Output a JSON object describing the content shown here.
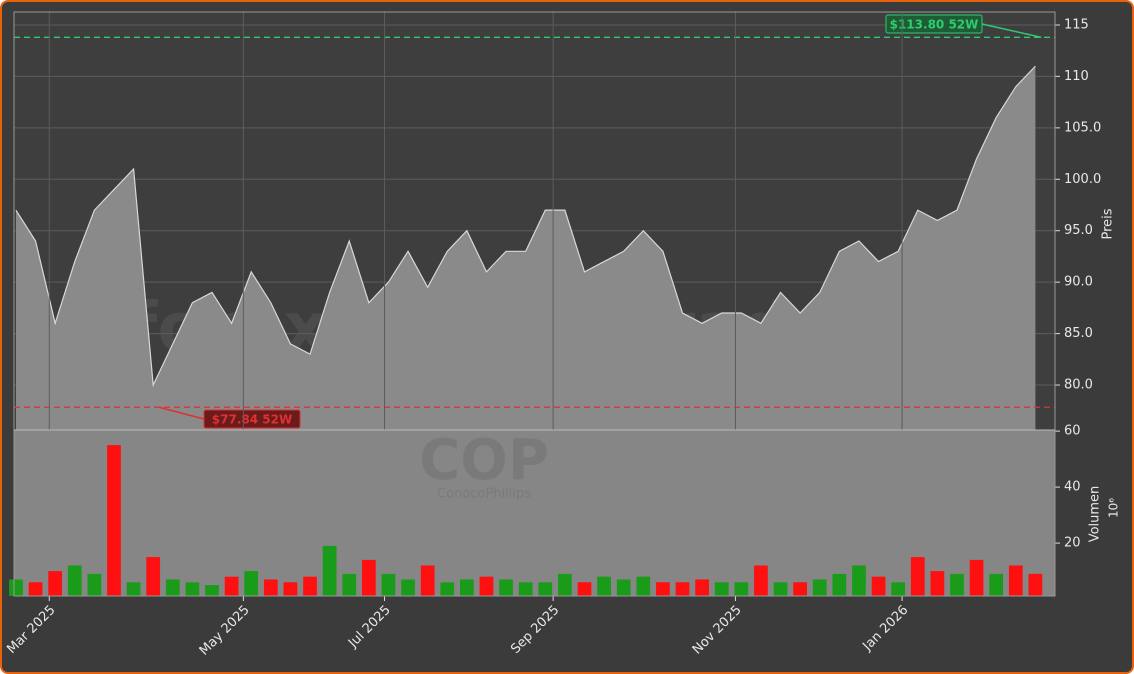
{
  "chart_data": [
    {
      "type": "area",
      "watermark": "forexsignale.trade",
      "symbol": "COP",
      "company": "ConocoPhillips",
      "ylabel": "Preis",
      "color": "#8a8a8a",
      "line_color": "#d8d8d8",
      "grid": true,
      "values": [
        97,
        94,
        86,
        92,
        97,
        99,
        101,
        80,
        84,
        88,
        89,
        86,
        91,
        88,
        84,
        83,
        89,
        94,
        88,
        90,
        93,
        89.5,
        93,
        95,
        91,
        93,
        93,
        97,
        97,
        91,
        92,
        93,
        95,
        93,
        87,
        86,
        87,
        87,
        86,
        89,
        87,
        89,
        93,
        94,
        92,
        93,
        97,
        96,
        97,
        102,
        106,
        109,
        111
      ],
      "xlim": [
        -0.1,
        53
      ],
      "ylim": [
        75.63,
        116.26
      ],
      "yticks": [
        {
          "value": 80,
          "label": "80.0"
        },
        {
          "value": 85,
          "label": "85.0"
        },
        {
          "value": 90,
          "label": "90.0"
        },
        {
          "value": 95,
          "label": "95.0"
        },
        {
          "value": 100,
          "label": "100.0"
        },
        {
          "value": 105,
          "label": "105.0"
        },
        {
          "value": 110,
          "label": "110"
        },
        {
          "value": 115,
          "label": "115"
        }
      ],
      "annotations": [
        {
          "text": "$113.80 52W",
          "value": 113.8,
          "color": "#2ecc71",
          "at": 52.3
        },
        {
          "text": "$77.84 52W",
          "value": 77.84,
          "color": "#e03030",
          "at": 7.3
        }
      ]
    },
    {
      "type": "bar",
      "ylabel": "Volumen",
      "unit": "10⁶",
      "values": [
        7,
        6,
        10,
        12,
        9,
        55,
        6,
        15,
        7,
        6,
        5,
        8,
        10,
        7,
        6,
        8,
        19,
        9,
        14,
        9,
        7,
        12,
        6,
        7,
        8,
        7,
        6,
        6,
        9,
        6,
        8,
        7,
        8,
        6,
        6,
        7,
        6,
        6,
        12,
        6,
        6,
        7,
        9,
        12,
        8,
        6,
        15,
        10,
        9,
        14,
        9,
        12,
        9
      ],
      "colors": [
        "#1a9c1a",
        "#ff1010",
        "#ff1010",
        "#1a9c1a",
        "#1a9c1a",
        "#ff1010",
        "#1a9c1a",
        "#ff1010",
        "#1a9c1a",
        "#1a9c1a",
        "#1a9c1a",
        "#ff1010",
        "#1a9c1a",
        "#ff1010",
        "#ff1010",
        "#ff1010",
        "#1a9c1a",
        "#1a9c1a",
        "#ff1010",
        "#1a9c1a",
        "#1a9c1a",
        "#ff1010",
        "#1a9c1a",
        "#1a9c1a",
        "#ff1010",
        "#1a9c1a",
        "#1a9c1a",
        "#1a9c1a",
        "#1a9c1a",
        "#ff1010",
        "#1a9c1a",
        "#1a9c1a",
        "#1a9c1a",
        "#ff1010",
        "#ff1010",
        "#ff1010",
        "#1a9c1a",
        "#1a9c1a",
        "#ff1010",
        "#1a9c1a",
        "#ff1010",
        "#1a9c1a",
        "#1a9c1a",
        "#1a9c1a",
        "#ff1010",
        "#1a9c1a",
        "#ff1010",
        "#ff1010",
        "#1a9c1a",
        "#ff1010",
        "#1a9c1a",
        "#ff1010",
        "#ff1010"
      ],
      "xlim": [
        -0.1,
        53
      ],
      "ylim": [
        1.1,
        60.4
      ],
      "yticks": [
        20,
        40,
        60
      ],
      "xticks": [
        {
          "value": 1.7,
          "label": "Mar 2025"
        },
        {
          "value": 11.6,
          "label": "May 2025"
        },
        {
          "value": 18.8,
          "label": "Jul 2025"
        },
        {
          "value": 27.4,
          "label": "Sep 2025"
        },
        {
          "value": 36.7,
          "label": "Nov 2025"
        },
        {
          "value": 45.2,
          "label": "Jan 2026"
        }
      ]
    }
  ]
}
